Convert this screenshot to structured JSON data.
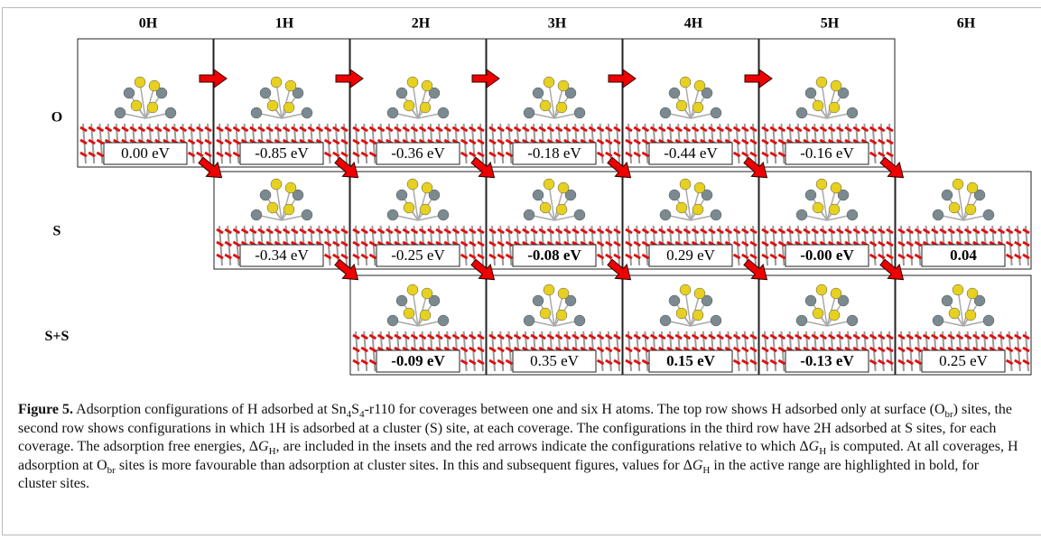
{
  "figure": {
    "columns": [
      "0H",
      "1H",
      "2H",
      "3H",
      "4H",
      "5H",
      "6H"
    ],
    "rows": [
      {
        "label": "O",
        "panels": [
          {
            "energy": "0.00 eV",
            "bold": false
          },
          {
            "energy": "-0.85 eV",
            "bold": false
          },
          {
            "energy": "-0.36 eV",
            "bold": false
          },
          {
            "energy": "-0.18 eV",
            "bold": false
          },
          {
            "energy": "-0.44 eV",
            "bold": false
          },
          {
            "energy": "-0.16 eV",
            "bold": false
          },
          null
        ]
      },
      {
        "label": "S",
        "panels": [
          null,
          {
            "energy": "-0.34 eV",
            "bold": false
          },
          {
            "energy": "-0.25 eV",
            "bold": false
          },
          {
            "energy": "-0.08 eV",
            "bold": true
          },
          {
            "energy": "0.29 eV",
            "bold": false
          },
          {
            "energy": "-0.00 eV",
            "bold": true
          },
          {
            "energy": "0.04",
            "bold": true
          }
        ]
      },
      {
        "label": "S+S",
        "panels": [
          null,
          null,
          {
            "energy": "-0.09 eV",
            "bold": true
          },
          {
            "energy": "0.35 eV",
            "bold": false
          },
          {
            "energy": "0.15 eV",
            "bold": true
          },
          {
            "energy": "-0.13 eV",
            "bold": true
          },
          {
            "energy": "0.25 eV",
            "bold": false
          }
        ]
      }
    ],
    "caption": [
      {
        "text": "Figure 5.",
        "bold": true
      },
      {
        "text": " Adsorption configurations of H adsorbed at Sn"
      },
      {
        "text": "4",
        "sub": true
      },
      {
        "text": "S"
      },
      {
        "text": "4",
        "sub": true
      },
      {
        "text": "-r110 for coverages between one and six H atoms. The top row shows H adsorbed only at surface (O"
      },
      {
        "text": "br",
        "sub": true
      },
      {
        "text": ") sites, the second row shows configurations in which 1H is adsorbed at a cluster (S) site, at each coverage. The configurations in the third row have 2H adsorbed at S sites, for each coverage. The adsorption free energies, Δ"
      },
      {
        "text": "G",
        "italic": true
      },
      {
        "text": "H",
        "sub": true
      },
      {
        "text": ", are included in the insets and the red arrows indicate the configurations relative to which Δ"
      },
      {
        "text": "G",
        "italic": true
      },
      {
        "text": "H",
        "sub": true
      },
      {
        "text": " is computed. At all coverages, H adsorption at O"
      },
      {
        "text": "br",
        "sub": true
      },
      {
        "text": " sites is more favourable than adsorption at cluster sites. In this and subsequent figures, values for Δ"
      },
      {
        "text": "G",
        "italic": true
      },
      {
        "text": "H",
        "sub": true
      },
      {
        "text": " in the active range are highlighted in bold, for cluster sites."
      }
    ]
  }
}
